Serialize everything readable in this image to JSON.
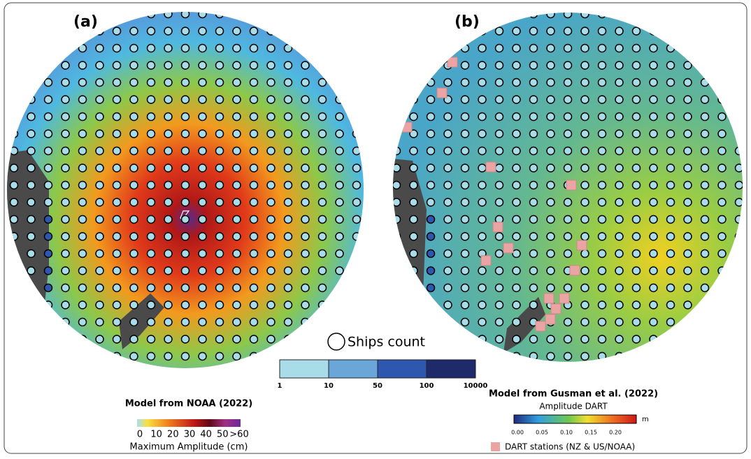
{
  "panels": [
    {
      "label": "(a)",
      "caption": "Model from NOAA (2022)",
      "colorbar": {
        "ticks": [
          "0",
          "10",
          "20",
          "30",
          "40",
          "50",
          ">60"
        ],
        "title": "Maximum Amplitude (cm)"
      }
    },
    {
      "label": "(b)",
      "caption": "Model from Gusman et al. (2022)",
      "colorbar": {
        "title": "Amplitude DART",
        "ticks": [
          "0.00",
          "0.05",
          "0.10",
          "0.15",
          "0.20"
        ],
        "unit": "m"
      },
      "stations_legend": "DART stations (NZ & US/NOAA)"
    }
  ],
  "ships_legend": {
    "title": "Ships count",
    "ticks": [
      1,
      10,
      50,
      100,
      10000
    ]
  }
}
